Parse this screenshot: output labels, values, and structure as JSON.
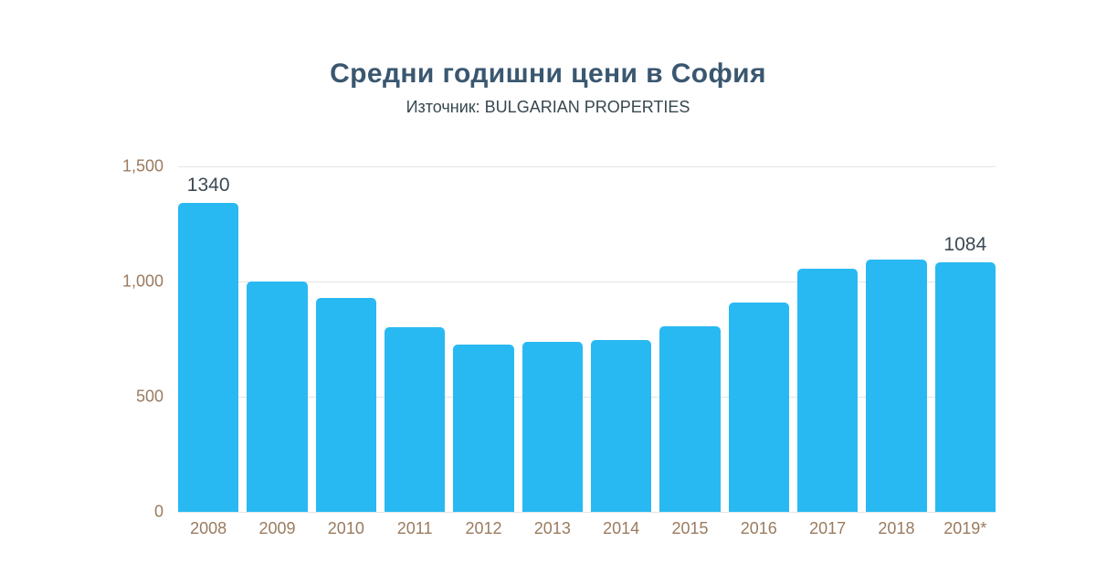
{
  "header": {
    "title": "Средни годишни цени в София",
    "subtitle": "Източник: BULGARIAN PROPERTIES"
  },
  "chart_data": {
    "type": "bar",
    "title": "Средни годишни цени в София",
    "subtitle": "Източник: BULGARIAN PROPERTIES",
    "categories": [
      "2008",
      "2009",
      "2010",
      "2011",
      "2012",
      "2013",
      "2014",
      "2015",
      "2016",
      "2017",
      "2018",
      "2019*"
    ],
    "values": [
      1340,
      1000,
      930,
      800,
      725,
      740,
      745,
      805,
      910,
      1055,
      1095,
      1084
    ],
    "show_value_labels": [
      true,
      false,
      false,
      false,
      false,
      false,
      false,
      false,
      false,
      false,
      false,
      true
    ],
    "value_labels": [
      "1340",
      "",
      "",
      "",
      "",
      "",
      "",
      "",
      "",
      "",
      "",
      "1084"
    ],
    "xlabel": "",
    "ylabel": "",
    "ylim": [
      0,
      1500
    ],
    "yticks": [
      "0",
      "500",
      "1,000",
      "1,500"
    ],
    "ytick_values": [
      0,
      500,
      1000,
      1500
    ],
    "grid": true,
    "legend": "none",
    "colors": {
      "bar": "#29B9F2",
      "title": "#3A5770",
      "subtitle": "#37474F",
      "axis_labels": "#9A7B5F",
      "value_labels": "#3C4A55",
      "gridline": "#E4E4E4",
      "background": "#FFFFFF"
    }
  }
}
